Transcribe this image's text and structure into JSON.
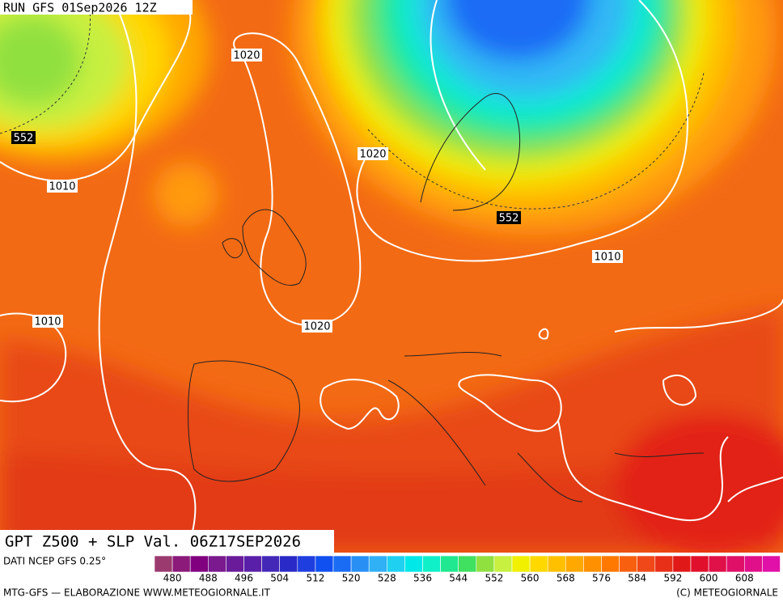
{
  "header": {
    "run": "RUN GFS 01Sep2026 12Z"
  },
  "map": {
    "title": "GPT Z500 + SLP Val. 06Z17SEP2026",
    "contour_labels": [
      "1020",
      "552",
      "1010",
      "1020",
      "552",
      "1010",
      "1010",
      "1020"
    ]
  },
  "legend": {
    "source": "DATI NCEP GFS 0.25°",
    "labels": [
      480,
      488,
      496,
      504,
      512,
      520,
      528,
      536,
      544,
      552,
      560,
      568,
      576,
      584,
      592,
      600,
      608
    ],
    "colors": [
      "#9b3a6e",
      "#8b1a7b",
      "#800080",
      "#7a1a8e",
      "#6a1b9a",
      "#5a1fa8",
      "#4328b8",
      "#2a2ac8",
      "#1e3ee0",
      "#1050f0",
      "#1a6cf5",
      "#2890f5",
      "#30b0f5",
      "#20d0f0",
      "#00e8e8",
      "#10f0c8",
      "#20e890",
      "#40e060",
      "#90e040",
      "#c8f040",
      "#f0f000",
      "#ffd800",
      "#ffc000",
      "#ffa800",
      "#ff9000",
      "#ff7800",
      "#f86010",
      "#f04818",
      "#e83018",
      "#e01818",
      "#e0102c",
      "#e01048",
      "#e01068",
      "#e0108a",
      "#e010a8"
    ]
  },
  "footer": {
    "left": "MTG-GFS — ELABORAZIONE WWW.METEOGIORNALE.IT",
    "right": "(C) METEOGIORNALE"
  }
}
